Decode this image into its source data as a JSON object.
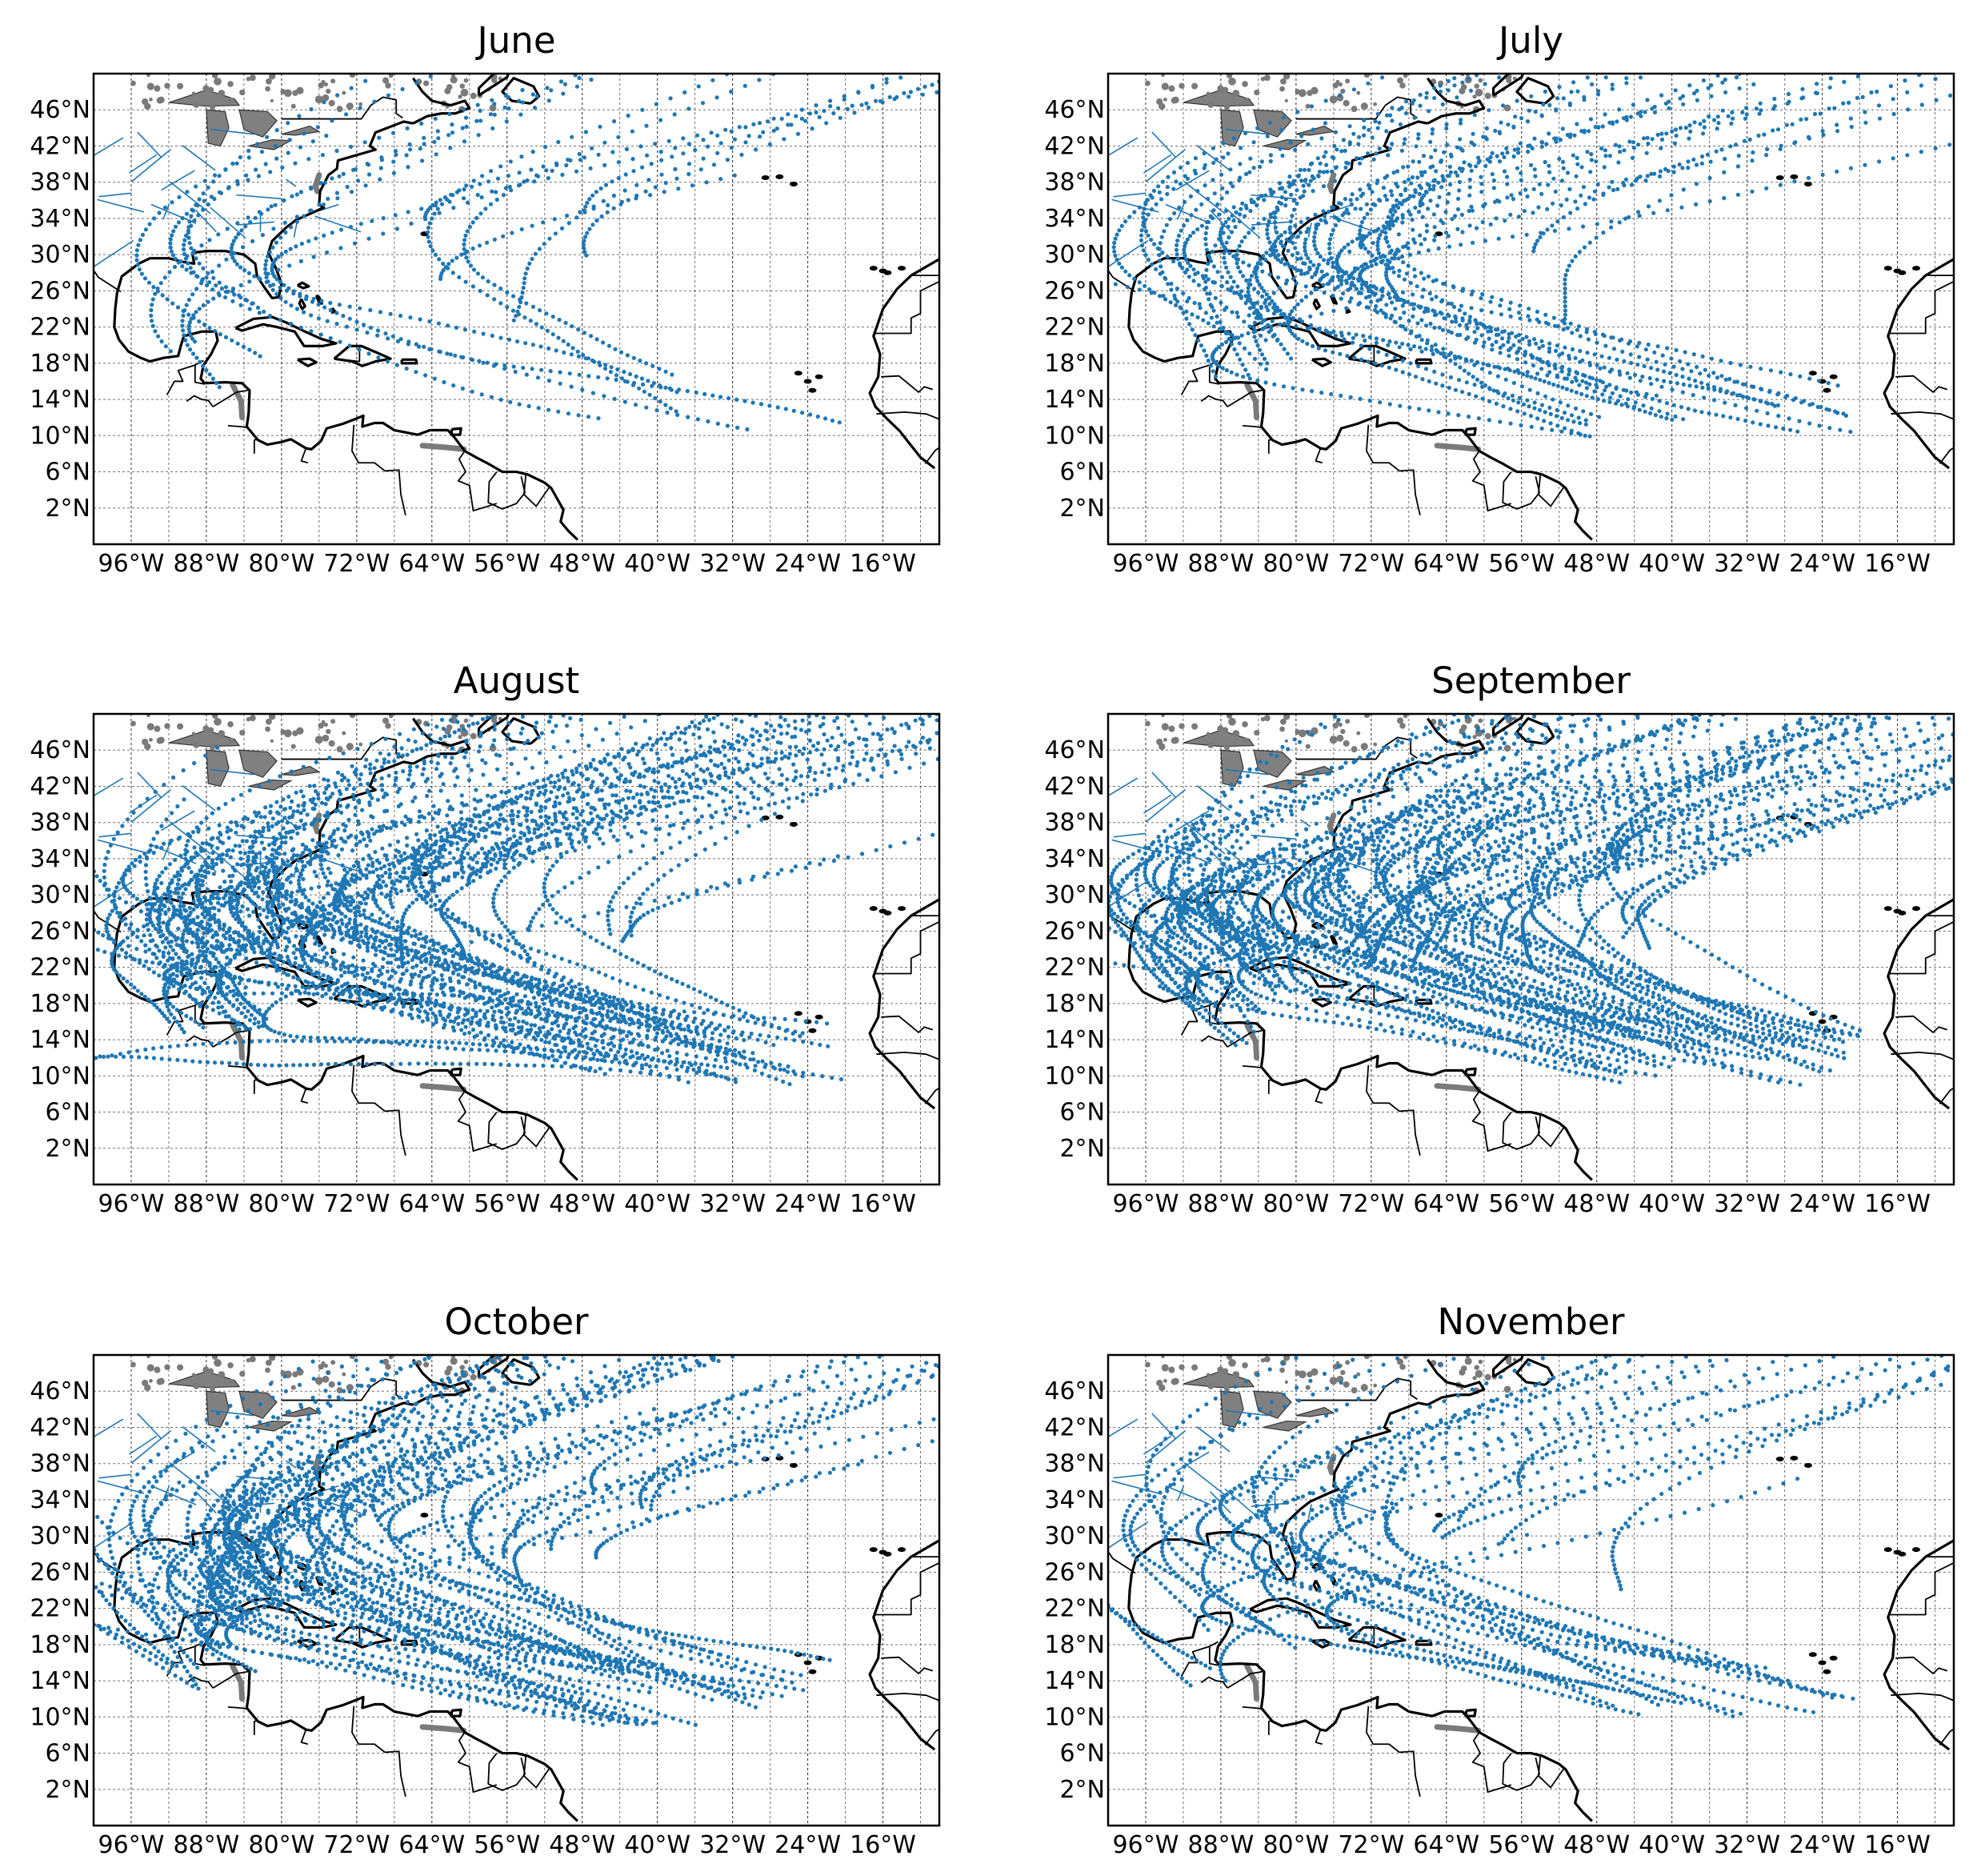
{
  "figure": {
    "panels": [
      {
        "title": "June",
        "intensity": 0.12
      },
      {
        "title": "July",
        "intensity": 0.35
      },
      {
        "title": "August",
        "intensity": 0.85
      },
      {
        "title": "September",
        "intensity": 1.0
      },
      {
        "title": "October",
        "intensity": 0.75
      },
      {
        "title": "November",
        "intensity": 0.28
      }
    ],
    "map_extent": {
      "lon_min": -100,
      "lon_max": -10,
      "lat_min": -2,
      "lat_max": 50
    },
    "lon_ticks": [
      -96,
      -88,
      -80,
      -72,
      -64,
      -56,
      -48,
      -40,
      -32,
      -24,
      -16
    ],
    "lon_tick_labels": [
      "96°W",
      "88°W",
      "80°W",
      "72°W",
      "64°W",
      "56°W",
      "48°W",
      "40°W",
      "32°W",
      "24°W",
      "16°W"
    ],
    "lat_ticks": [
      2,
      6,
      10,
      14,
      18,
      22,
      26,
      30,
      34,
      38,
      42,
      46
    ],
    "lat_tick_labels": [
      "2°N",
      "6°N",
      "10°N",
      "14°N",
      "18°N",
      "22°N",
      "26°N",
      "30°N",
      "34°N",
      "38°N",
      "42°N",
      "46°N"
    ],
    "colors": {
      "track": "#1f77b4",
      "coast": "#000000",
      "lakes": "#808080",
      "grid": "#000000"
    }
  }
}
